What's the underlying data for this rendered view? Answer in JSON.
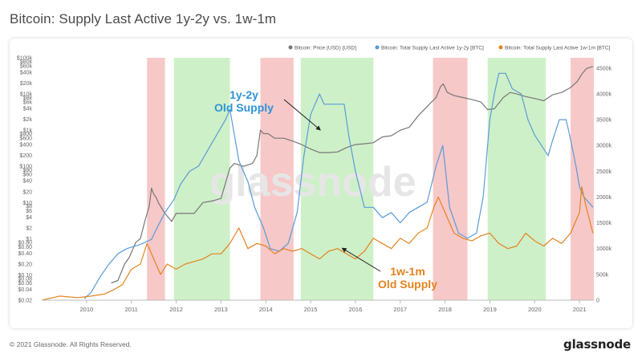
{
  "title": "Bitcoin: Supply Last Active 1y-2y vs. 1w-1m",
  "footer": "© 2021 Glassnode. All Rights Reserved.",
  "brand": "glassnode",
  "watermark": "glassnode",
  "chart_data": {
    "type": "line",
    "title": "Bitcoin: Supply Last Active 1y-2y vs. 1w-1m",
    "xlim": [
      2009.0,
      2021.32
    ],
    "x_ticks": [
      "2010",
      "2011",
      "2012",
      "2013",
      "2014",
      "2015",
      "2016",
      "2017",
      "2018",
      "2019",
      "2020",
      "2021"
    ],
    "y_left": {
      "scale": "log",
      "range": [
        0.02,
        100000
      ],
      "tick_labels": [
        "$0.02",
        "$0.04",
        "$0.06",
        "$0.08",
        "$0.10",
        "$0.20",
        "$0.40",
        "$0.60",
        "$0.80",
        "$1",
        "$2",
        "$4",
        "$6",
        "$8",
        "$10",
        "$20",
        "$40",
        "$60",
        "$80",
        "$100",
        "$200",
        "$400",
        "$600",
        "$800",
        "$1k",
        "$2k",
        "$4k",
        "$6k",
        "$8k",
        "$10k",
        "$20k",
        "$40k",
        "$60k",
        "$80k",
        "$100k"
      ],
      "tick_values": [
        0.02,
        0.04,
        0.06,
        0.08,
        0.1,
        0.2,
        0.4,
        0.6,
        0.8,
        1,
        2,
        4,
        6,
        8,
        10,
        20,
        40,
        60,
        80,
        100,
        200,
        400,
        600,
        800,
        1000,
        2000,
        4000,
        6000,
        8000,
        10000,
        20000,
        40000,
        60000,
        80000,
        100000
      ]
    },
    "y_right": {
      "scale": "linear",
      "range": [
        0,
        4700000
      ],
      "tick_labels": [
        "0",
        "500k",
        "1000k",
        "1500k",
        "2000k",
        "2500k",
        "3000k",
        "3500k",
        "4000k",
        "4500k"
      ],
      "tick_values": [
        0,
        500000,
        1000000,
        1500000,
        2000000,
        2500000,
        3000000,
        3500000,
        4000000,
        4500000
      ]
    },
    "legend": {
      "placement": "top-right",
      "entries": [
        {
          "label": "Bitcoin: Price (USD) [USD]",
          "color": "#777777"
        },
        {
          "label": "Bitcoin: Total Supply Last Active 1y-2y [BTC]",
          "color": "#5b9bd8"
        },
        {
          "label": "Bitcoin: Total Supply Last Active 1w-1m [BTC]",
          "color": "#e38420"
        }
      ]
    },
    "bands": [
      {
        "start": 2011.35,
        "end": 2011.75,
        "color": "#f4b6b6"
      },
      {
        "start": 2011.95,
        "end": 2013.2,
        "color": "#bdebb5"
      },
      {
        "start": 2013.88,
        "end": 2014.62,
        "color": "#f4b6b6"
      },
      {
        "start": 2014.78,
        "end": 2016.4,
        "color": "#bdebb5"
      },
      {
        "start": 2017.73,
        "end": 2018.5,
        "color": "#f4b6b6"
      },
      {
        "start": 2018.95,
        "end": 2020.25,
        "color": "#bdebb5"
      },
      {
        "start": 2020.8,
        "end": 2021.32,
        "color": "#f4b6b6"
      }
    ],
    "annotations": [
      {
        "text": "1y-2y",
        "text2": "Old Supply",
        "color": "#2f93d9",
        "arrow_to": [
          2015.22,
          1000
        ]
      },
      {
        "text": "1w-1m",
        "text2": "Old Supply",
        "color": "#e38420",
        "arrow_to": [
          2015.7,
          0.55
        ]
      }
    ],
    "series": [
      {
        "name": "Bitcoin: Price (USD) [USD]",
        "axis": "left",
        "color": "#777777",
        "x": [
          2010.55,
          2010.7,
          2010.85,
          2010.95,
          2011.1,
          2011.2,
          2011.3,
          2011.4,
          2011.45,
          2011.5,
          2011.55,
          2011.6,
          2011.75,
          2011.9,
          2012.0,
          2012.1,
          2012.2,
          2012.4,
          2012.6,
          2012.8,
          2013.0,
          2013.2,
          2013.3,
          2013.5,
          2013.7,
          2013.8,
          2013.88,
          2013.95,
          2014.05,
          2014.2,
          2014.4,
          2014.6,
          2014.8,
          2015.0,
          2015.2,
          2015.4,
          2015.6,
          2015.8,
          2016.0,
          2016.2,
          2016.4,
          2016.6,
          2016.8,
          2017.0,
          2017.2,
          2017.4,
          2017.6,
          2017.8,
          2017.9,
          2017.96,
          2018.05,
          2018.2,
          2018.4,
          2018.6,
          2018.8,
          2018.95,
          2019.1,
          2019.3,
          2019.45,
          2019.6,
          2019.8,
          2020.0,
          2020.2,
          2020.4,
          2020.6,
          2020.8,
          2020.95,
          2021.05,
          2021.15,
          2021.3
        ],
        "y": [
          0.06,
          0.07,
          0.2,
          0.3,
          0.8,
          1.0,
          3.0,
          8.0,
          25.0,
          17.0,
          14.0,
          10.0,
          5.0,
          3.0,
          5.0,
          5.0,
          5.0,
          5.0,
          10.0,
          11.0,
          13.0,
          90.0,
          120.0,
          100.0,
          120.0,
          200.0,
          1000.0,
          800.0,
          800.0,
          600.0,
          600.0,
          500.0,
          400.0,
          300.0,
          240.0,
          240.0,
          250.0,
          330.0,
          400.0,
          420.0,
          450.0,
          650.0,
          700.0,
          1000.0,
          1200.0,
          2500.0,
          4500.0,
          8000.0,
          16000.0,
          19000.0,
          11000.0,
          9000.0,
          8000.0,
          7000.0,
          6000.0,
          3700.0,
          3900.0,
          8000.0,
          11000.0,
          10000.0,
          8500.0,
          7500.0,
          6500.0,
          9500.0,
          11000.0,
          15000.0,
          22000.0,
          35000.0,
          50000.0,
          58000.0
        ]
      },
      {
        "name": "Bitcoin: Total Supply Last Active 1y-2y [BTC]",
        "axis": "right",
        "color": "#5b9bd8",
        "x": [
          2009.95,
          2010.1,
          2010.3,
          2010.5,
          2010.7,
          2010.9,
          2011.2,
          2011.45,
          2011.6,
          2011.75,
          2011.95,
          2012.1,
          2012.3,
          2012.5,
          2012.7,
          2012.9,
          2013.1,
          2013.2,
          2013.4,
          2013.6,
          2013.75,
          2013.95,
          2014.1,
          2014.3,
          2014.5,
          2014.7,
          2014.85,
          2015.0,
          2015.1,
          2015.2,
          2015.3,
          2015.45,
          2015.6,
          2015.75,
          2015.85,
          2016.0,
          2016.2,
          2016.4,
          2016.6,
          2016.8,
          2017.0,
          2017.2,
          2017.4,
          2017.6,
          2017.8,
          2017.95,
          2018.1,
          2018.3,
          2018.5,
          2018.7,
          2018.85,
          2019.0,
          2019.1,
          2019.2,
          2019.35,
          2019.5,
          2019.7,
          2019.85,
          2020.0,
          2020.15,
          2020.3,
          2020.4,
          2020.55,
          2020.7,
          2020.78,
          2020.85,
          2020.92,
          2021.0,
          2021.1,
          2021.2,
          2021.3
        ],
        "y": [
          30000,
          150000,
          450000,
          700000,
          900000,
          1000000,
          1080000,
          1180000,
          1450000,
          1700000,
          1950000,
          2250000,
          2500000,
          2600000,
          2900000,
          3200000,
          3500000,
          3700000,
          2700000,
          2300000,
          1800000,
          1400000,
          1000000,
          950000,
          1100000,
          1700000,
          2800000,
          3600000,
          3800000,
          4000000,
          3800000,
          3800000,
          3800000,
          3800000,
          3200000,
          2500000,
          1800000,
          1800000,
          1600000,
          1700000,
          1500000,
          1700000,
          1800000,
          1900000,
          2600000,
          3000000,
          1800000,
          1300000,
          1200000,
          1300000,
          2000000,
          3500000,
          4000000,
          4400000,
          4400000,
          4100000,
          4000000,
          3500000,
          3200000,
          3000000,
          2800000,
          3100000,
          3500000,
          3500000,
          3200000,
          2900000,
          2600000,
          2200000,
          2000000,
          1900000,
          1800000
        ]
      },
      {
        "name": "Bitcoin: Total Supply Last Active 1w-1m [BTC]",
        "axis": "right",
        "color": "#e38420",
        "x": [
          2009.0,
          2009.4,
          2009.8,
          2010.1,
          2010.4,
          2010.6,
          2010.8,
          2011.0,
          2011.2,
          2011.35,
          2011.5,
          2011.65,
          2011.8,
          2012.0,
          2012.2,
          2012.4,
          2012.6,
          2012.8,
          2013.0,
          2013.2,
          2013.4,
          2013.6,
          2013.8,
          2014.0,
          2014.2,
          2014.4,
          2014.6,
          2014.8,
          2015.0,
          2015.2,
          2015.4,
          2015.6,
          2015.8,
          2016.0,
          2016.2,
          2016.4,
          2016.6,
          2016.8,
          2017.0,
          2017.2,
          2017.4,
          2017.6,
          2017.75,
          2017.85,
          2017.95,
          2018.05,
          2018.2,
          2018.4,
          2018.6,
          2018.8,
          2019.0,
          2019.2,
          2019.4,
          2019.6,
          2019.8,
          2020.0,
          2020.2,
          2020.4,
          2020.6,
          2020.8,
          2020.9,
          2021.0,
          2021.05,
          2021.15,
          2021.3
        ],
        "y": [
          0,
          80000,
          50000,
          80000,
          120000,
          200000,
          300000,
          600000,
          700000,
          1100000,
          800000,
          500000,
          700000,
          600000,
          700000,
          750000,
          800000,
          900000,
          900000,
          1100000,
          1400000,
          1000000,
          1100000,
          1050000,
          900000,
          1000000,
          950000,
          1000000,
          900000,
          800000,
          950000,
          1000000,
          900000,
          800000,
          950000,
          1200000,
          1100000,
          1000000,
          1200000,
          1100000,
          1300000,
          1400000,
          1800000,
          2000000,
          1800000,
          1600000,
          1300000,
          1200000,
          1150000,
          1250000,
          1300000,
          1100000,
          1000000,
          1050000,
          1300000,
          1150000,
          1050000,
          1200000,
          1100000,
          1300000,
          1500000,
          1700000,
          2200000,
          1800000,
          1300000
        ]
      }
    ]
  }
}
